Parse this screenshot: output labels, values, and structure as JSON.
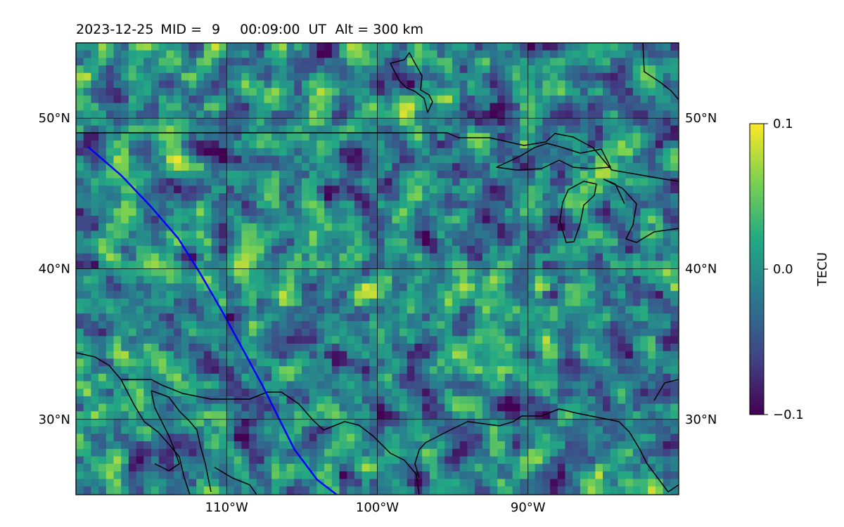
{
  "title": {
    "date": "2023-12-25",
    "mid_label": "MID =",
    "mid_value": "9",
    "time": "00:09:00",
    "time_unit": "UT",
    "altitude": "Alt = 300 km"
  },
  "map": {
    "lon_range": [
      -120,
      -80
    ],
    "lat_range": [
      25,
      55
    ],
    "lat_ticks": [
      {
        "value": 30,
        "label": "30°N"
      },
      {
        "value": 40,
        "label": "40°N"
      },
      {
        "value": 50,
        "label": "50°N"
      }
    ],
    "lon_ticks": [
      {
        "value": -110,
        "label": "110°W"
      },
      {
        "value": -100,
        "label": "100°W"
      },
      {
        "value": -90,
        "label": "90°W"
      }
    ],
    "grid": true,
    "field_colormap": "viridis",
    "track_color": "#0000ff",
    "coastline_color": "#000000"
  },
  "colorbar": {
    "label": "TECU",
    "min": -0.1,
    "max": 0.1,
    "ticks": [
      {
        "value": 0.1,
        "label": "0.1"
      },
      {
        "value": 0.0,
        "label": "0.0"
      },
      {
        "value": -0.1,
        "label": "−0.1"
      }
    ],
    "colors": [
      "#440154",
      "#414487",
      "#2a788e",
      "#22a884",
      "#7ad151",
      "#fde725"
    ]
  },
  "satellite_track": [
    [
      -119.2,
      48.1
    ],
    [
      -117.0,
      46.2
    ],
    [
      -115.0,
      44.1
    ],
    [
      -113.2,
      42.0
    ],
    [
      -111.7,
      39.6
    ],
    [
      -110.2,
      37.0
    ],
    [
      -108.9,
      34.6
    ],
    [
      -107.6,
      32.2
    ],
    [
      -106.5,
      30.0
    ],
    [
      -105.5,
      28.0
    ],
    [
      -104.0,
      26.0
    ],
    [
      -102.7,
      25.0
    ]
  ]
}
